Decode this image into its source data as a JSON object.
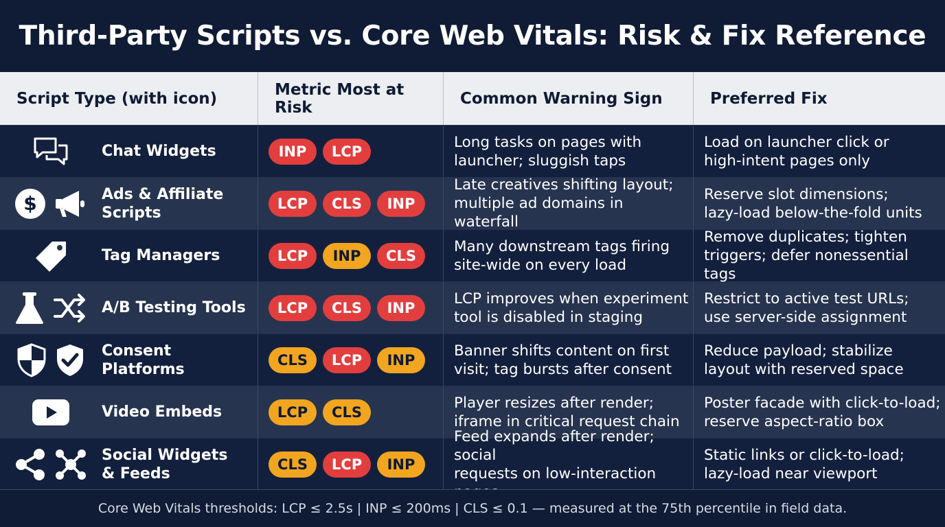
{
  "title": "Third-Party Scripts vs. Core Web Vitals: Risk & Fix Reference",
  "headers": [
    "Script Type (with icon)",
    "Metric Most at Risk",
    "Common Warning Sign",
    "Preferred Fix"
  ],
  "colors": {
    "red": "#e33e3e",
    "amber": "#f2a51f",
    "navy": "#0f1b33"
  },
  "rows": [
    {
      "icons": [
        "chat-icon"
      ],
      "name": "Chat Widgets",
      "badges": [
        {
          "label": "INP",
          "color": "red"
        },
        {
          "label": "LCP",
          "color": "red"
        }
      ],
      "warning": "Long tasks on pages with\nlauncher; sluggish taps",
      "fix": "Load on launcher click or\nhigh-intent pages only"
    },
    {
      "icons": [
        "dollar-icon",
        "megaphone-icon"
      ],
      "name": "Ads & Affiliate\nScripts",
      "badges": [
        {
          "label": "LCP",
          "color": "red"
        },
        {
          "label": "CLS",
          "color": "red"
        },
        {
          "label": "INP",
          "color": "red"
        }
      ],
      "warning": "Late creatives shifting layout;\nmultiple ad domains in waterfall",
      "fix": "Reserve slot dimensions;\nlazy-load below-the-fold units"
    },
    {
      "icons": [
        "tag-icon"
      ],
      "name": "Tag Managers",
      "badges": [
        {
          "label": "LCP",
          "color": "red"
        },
        {
          "label": "INP",
          "color": "amber"
        },
        {
          "label": "CLS",
          "color": "red"
        }
      ],
      "warning": "Many downstream tags firing\nsite-wide on every load",
      "fix": "Remove duplicates; tighten\ntriggers; defer nonessential tags"
    },
    {
      "icons": [
        "flask-icon",
        "shuffle-icon"
      ],
      "name": "A/B Testing Tools",
      "badges": [
        {
          "label": "LCP",
          "color": "red"
        },
        {
          "label": "CLS",
          "color": "red"
        },
        {
          "label": "INP",
          "color": "red"
        }
      ],
      "warning": "LCP improves when experiment\ntool is disabled in staging",
      "fix": "Restrict to active test URLs;\nuse server-side assignment"
    },
    {
      "icons": [
        "shield-icon",
        "shield-check-icon"
      ],
      "name": "Consent Platforms",
      "badges": [
        {
          "label": "CLS",
          "color": "amber"
        },
        {
          "label": "LCP",
          "color": "red"
        },
        {
          "label": "INP",
          "color": "amber"
        }
      ],
      "warning": "Banner shifts content on first\nvisit; tag bursts after consent",
      "fix": "Reduce payload; stabilize\nlayout with reserved space"
    },
    {
      "icons": [
        "video-play-icon"
      ],
      "name": "Video Embeds",
      "badges": [
        {
          "label": "LCP",
          "color": "amber"
        },
        {
          "label": "CLS",
          "color": "amber"
        }
      ],
      "warning": "Player resizes after render;\niframe in critical request chain",
      "fix": "Poster facade with click-to-load;\nreserve aspect-ratio box"
    },
    {
      "icons": [
        "share-icon",
        "network-icon"
      ],
      "name": "Social Widgets\n& Feeds",
      "badges": [
        {
          "label": "CLS",
          "color": "amber"
        },
        {
          "label": "LCP",
          "color": "red"
        },
        {
          "label": "INP",
          "color": "amber"
        }
      ],
      "warning": "Feed expands after render; social\nrequests on low-interaction pages",
      "fix": "Static links or click-to-load;\nlazy-load near viewport"
    }
  ],
  "footer": "Core Web Vitals thresholds: LCP ≤ 2.5s | INP ≤ 200ms | CLS ≤ 0.1 — measured at the 75th percentile in field data."
}
